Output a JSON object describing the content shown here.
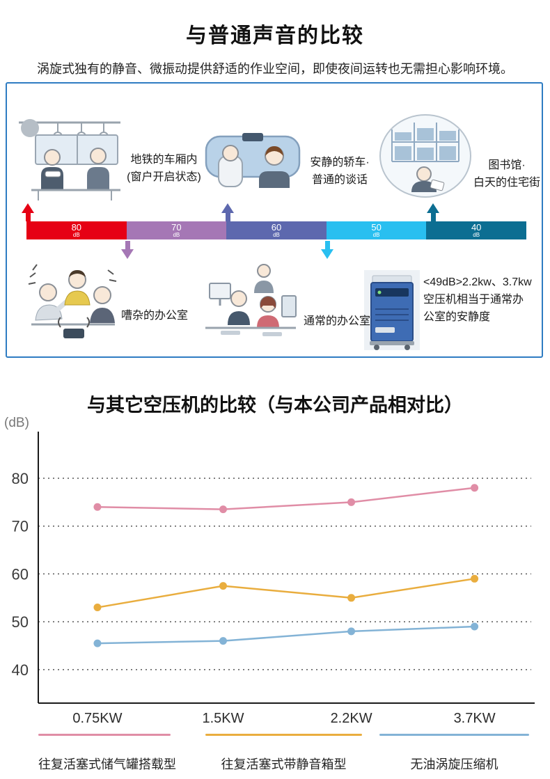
{
  "section1": {
    "title": "与普通声音的比较",
    "subtitle": "涡旋式独有的静音、微振动提供舒适的作业空间，即使夜间运转也无需担心影响环境。",
    "border_color": "#2e7cc2",
    "scale_segments": [
      {
        "value": "80",
        "unit": "dB",
        "color": "#e60014"
      },
      {
        "value": "70",
        "unit": "dB",
        "color": "#a577b5"
      },
      {
        "value": "60",
        "unit": "dB",
        "color": "#5d68ae"
      },
      {
        "value": "50",
        "unit": "dB",
        "color": "#29bff0"
      },
      {
        "value": "40",
        "unit": "dB",
        "color": "#0c6e92"
      }
    ],
    "arrows": [
      {
        "at": "80dB",
        "direction": "up",
        "color": "#e60014"
      },
      {
        "at": "70dB",
        "direction": "down",
        "color": "#a577b5"
      },
      {
        "at": "60dB",
        "direction": "up",
        "color": "#5d68ae"
      },
      {
        "at": "50dB",
        "direction": "down",
        "color": "#29bff0"
      },
      {
        "at": "40dB",
        "direction": "up",
        "color": "#0c6e92"
      }
    ],
    "examples_top": [
      {
        "label": "地铁的车厢内\n(窗户开启状态)",
        "illustration": "subway-interior"
      },
      {
        "label": "安静的轿车·\n普通的谈话",
        "illustration": "car-interior"
      },
      {
        "label": "图书馆·\n白天的住宅街",
        "illustration": "library"
      }
    ],
    "examples_bottom": [
      {
        "label": "嘈杂的办公室",
        "illustration": "noisy-office"
      },
      {
        "label": "通常的办公室",
        "illustration": "normal-office"
      },
      {
        "label": "<49dB>2.2kw、3.7kw\n空压机相当于通常办\n公室的安静度",
        "illustration": "scroll-compressor"
      }
    ]
  },
  "section2": {
    "title": "与其它空压机的比较（与本公司产品相对比）"
  },
  "chart_data": {
    "type": "line",
    "title": "与其它空压机的比较（与本公司产品相对比）",
    "ylabel": "(dB)",
    "categories": [
      "0.75KW",
      "1.5KW",
      "2.2KW",
      "3.7KW"
    ],
    "series": [
      {
        "name": "往复活塞式储气罐搭载型",
        "color": "#e08da6",
        "values": [
          74,
          73.5,
          75,
          78
        ]
      },
      {
        "name": "往复活塞式带静音箱型",
        "color": "#e9ad3e",
        "values": [
          53,
          57.5,
          55,
          59
        ]
      },
      {
        "name": "无油涡旋压缩机",
        "color": "#83b3d6",
        "values": [
          45.5,
          46,
          48,
          49
        ]
      }
    ],
    "yticks": [
      40,
      50,
      60,
      70,
      80
    ],
    "ylim": [
      33,
      88
    ],
    "grid": "dotted-horizontal",
    "legend_position": "bottom"
  }
}
